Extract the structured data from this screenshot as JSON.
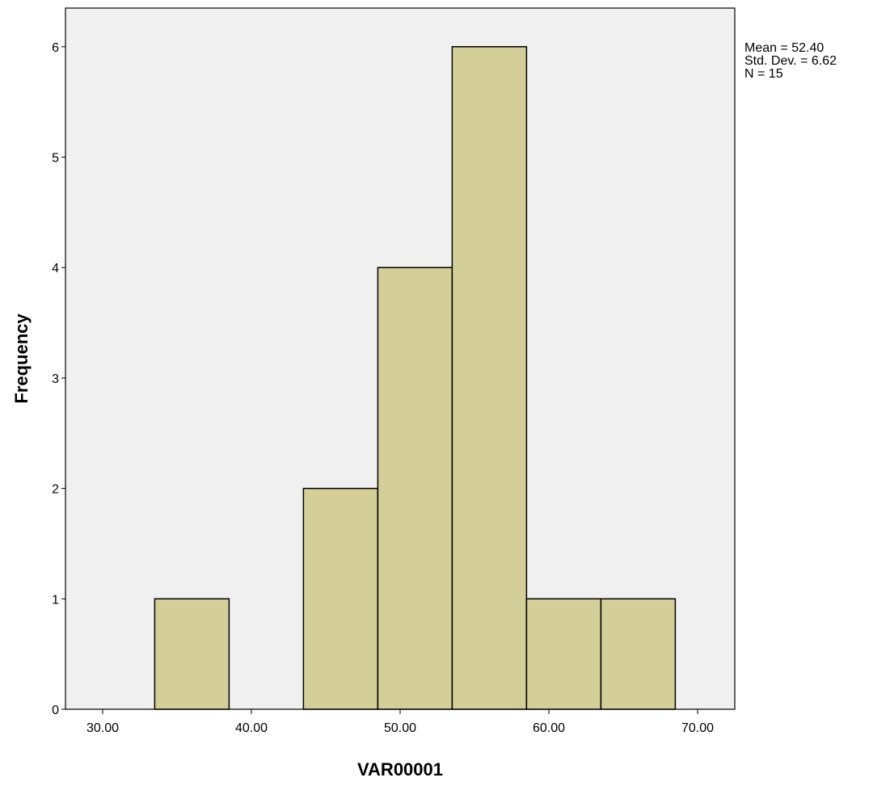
{
  "chart_data": {
    "type": "bar",
    "subtype": "histogram",
    "xlabel": "VAR00001",
    "ylabel": "Frequency",
    "xlim": [
      27.5,
      72.5
    ],
    "ylim": [
      0,
      6.35
    ],
    "x_ticks": [
      30,
      40,
      50,
      60,
      70
    ],
    "x_tick_labels": [
      "30.00",
      "40.00",
      "50.00",
      "60.00",
      "70.00"
    ],
    "y_ticks": [
      0,
      1,
      2,
      3,
      4,
      5,
      6
    ],
    "y_tick_labels": [
      "0",
      "1",
      "2",
      "3",
      "4",
      "5",
      "6"
    ],
    "bins": [
      {
        "start": 33.5,
        "end": 38.5,
        "count": 1
      },
      {
        "start": 38.5,
        "end": 43.5,
        "count": 0
      },
      {
        "start": 43.5,
        "end": 48.5,
        "count": 2
      },
      {
        "start": 48.5,
        "end": 53.5,
        "count": 4
      },
      {
        "start": 53.5,
        "end": 58.5,
        "count": 6
      },
      {
        "start": 58.5,
        "end": 63.5,
        "count": 1
      },
      {
        "start": 63.5,
        "end": 68.5,
        "count": 1
      }
    ],
    "stats": {
      "mean": "Mean = 52.40",
      "std_dev": "Std. Dev. = 6.62",
      "n": "N = 15"
    },
    "grid": false,
    "colors": {
      "bar_fill": "#d4ce98",
      "bar_stroke": "#000000",
      "plot_background": "#f0f0f0"
    }
  }
}
